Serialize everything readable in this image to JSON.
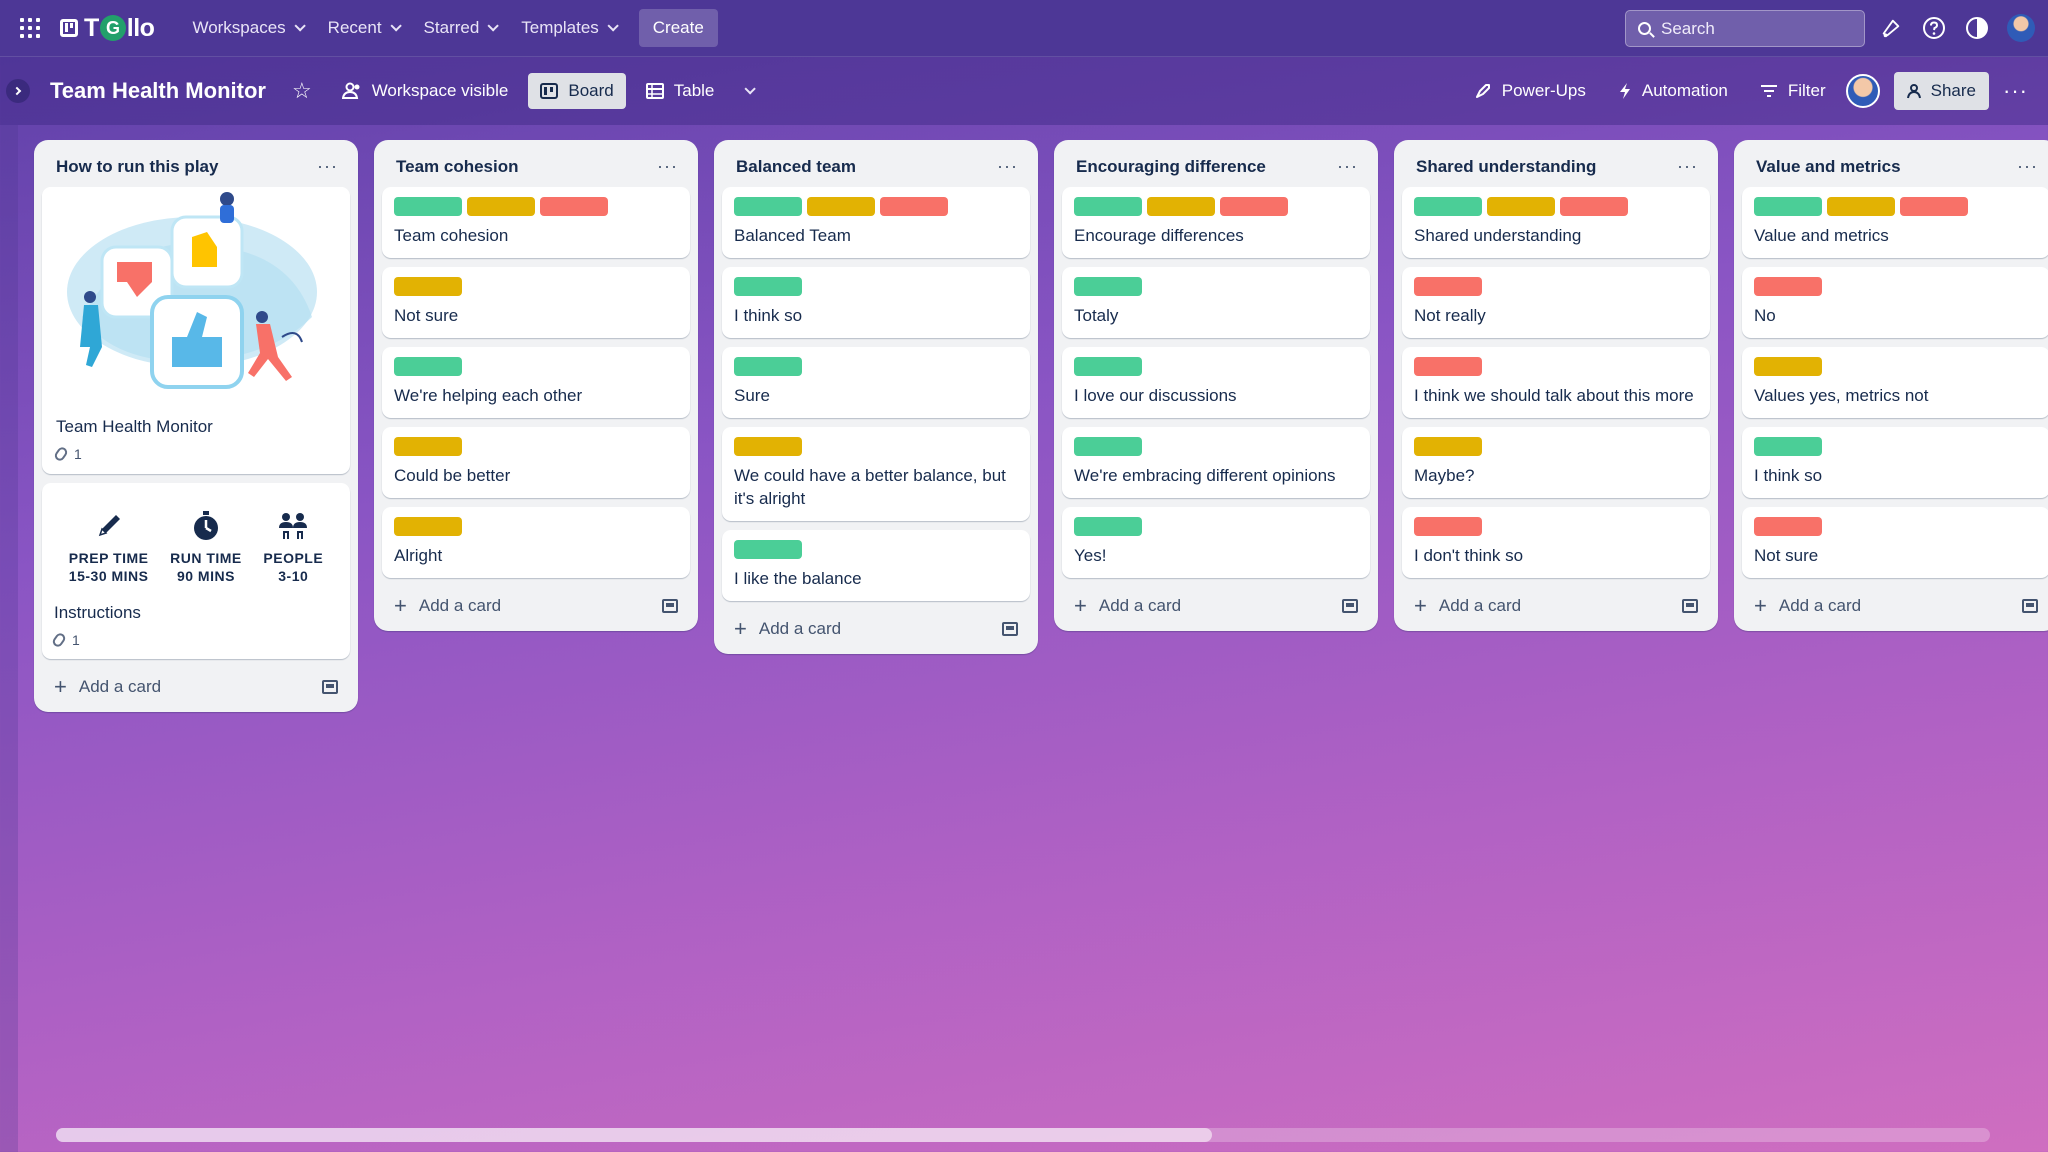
{
  "nav": {
    "logo_prefix": "T",
    "logo_mid": "G",
    "logo_suffix": "llo",
    "menu": [
      {
        "label": "Workspaces"
      },
      {
        "label": "Recent"
      },
      {
        "label": "Starred"
      },
      {
        "label": "Templates"
      }
    ],
    "create_label": "Create",
    "search_placeholder": "Search"
  },
  "board": {
    "title": "Team Health Monitor",
    "workspace_visible_label": "Workspace visible",
    "board_view_label": "Board",
    "table_view_label": "Table",
    "powerups_label": "Power-Ups",
    "automation_label": "Automation",
    "filter_label": "Filter",
    "share_label": "Share"
  },
  "add_card_label": "Add a card",
  "first_list": {
    "title": "How to run this play",
    "cover_card": {
      "title": "Team Health Monitor",
      "attachments": "1"
    },
    "stats": [
      {
        "label1": "PREP TIME",
        "label2": "15-30 MINS",
        "icon": "pencil-icon"
      },
      {
        "label1": "RUN TIME",
        "label2": "90 MINS",
        "icon": "stopwatch-icon"
      },
      {
        "label1": "PEOPLE",
        "label2": "3-10",
        "icon": "people-icon"
      }
    ],
    "instructions_card": {
      "title": "Instructions",
      "attachments": "1"
    }
  },
  "lists": [
    {
      "title": "Team cohesion",
      "cards": [
        {
          "labels": [
            "green",
            "yellow",
            "red"
          ],
          "text": "Team cohesion"
        },
        {
          "labels": [
            "yellow"
          ],
          "text": "Not sure"
        },
        {
          "labels": [
            "green"
          ],
          "text": "We're helping each other"
        },
        {
          "labels": [
            "yellow"
          ],
          "text": "Could be better"
        },
        {
          "labels": [
            "yellow"
          ],
          "text": "Alright"
        }
      ]
    },
    {
      "title": "Balanced team",
      "cards": [
        {
          "labels": [
            "green",
            "yellow",
            "red"
          ],
          "text": "Balanced Team"
        },
        {
          "labels": [
            "green"
          ],
          "text": "I think so"
        },
        {
          "labels": [
            "green"
          ],
          "text": "Sure"
        },
        {
          "labels": [
            "yellow"
          ],
          "text": "We could have a better balance, but it's alright"
        },
        {
          "labels": [
            "green"
          ],
          "text": "I like the balance"
        }
      ]
    },
    {
      "title": "Encouraging difference",
      "cards": [
        {
          "labels": [
            "green",
            "yellow",
            "red"
          ],
          "text": "Encourage differences"
        },
        {
          "labels": [
            "green"
          ],
          "text": "Totaly"
        },
        {
          "labels": [
            "green"
          ],
          "text": "I love our discussions"
        },
        {
          "labels": [
            "green"
          ],
          "text": "We're embracing different opinions"
        },
        {
          "labels": [
            "green"
          ],
          "text": "Yes!"
        }
      ]
    },
    {
      "title": "Shared understanding",
      "cards": [
        {
          "labels": [
            "green",
            "yellow",
            "red"
          ],
          "text": "Shared understanding"
        },
        {
          "labels": [
            "red"
          ],
          "text": "Not really"
        },
        {
          "labels": [
            "red"
          ],
          "text": "I think we should talk about this more"
        },
        {
          "labels": [
            "yellow"
          ],
          "text": "Maybe?"
        },
        {
          "labels": [
            "red"
          ],
          "text": "I don't think so"
        }
      ]
    },
    {
      "title": "Value and metrics",
      "cards": [
        {
          "labels": [
            "green",
            "yellow",
            "red"
          ],
          "text": "Value and metrics"
        },
        {
          "labels": [
            "red"
          ],
          "text": "No"
        },
        {
          "labels": [
            "yellow"
          ],
          "text": "Values yes, metrics not"
        },
        {
          "labels": [
            "green"
          ],
          "text": "I think so"
        },
        {
          "labels": [
            "red"
          ],
          "text": "Not sure"
        }
      ]
    }
  ],
  "colors": {
    "green": "#4bce97",
    "yellow": "#e2b203",
    "red": "#f87168",
    "nav_bg": "#4d3796"
  }
}
